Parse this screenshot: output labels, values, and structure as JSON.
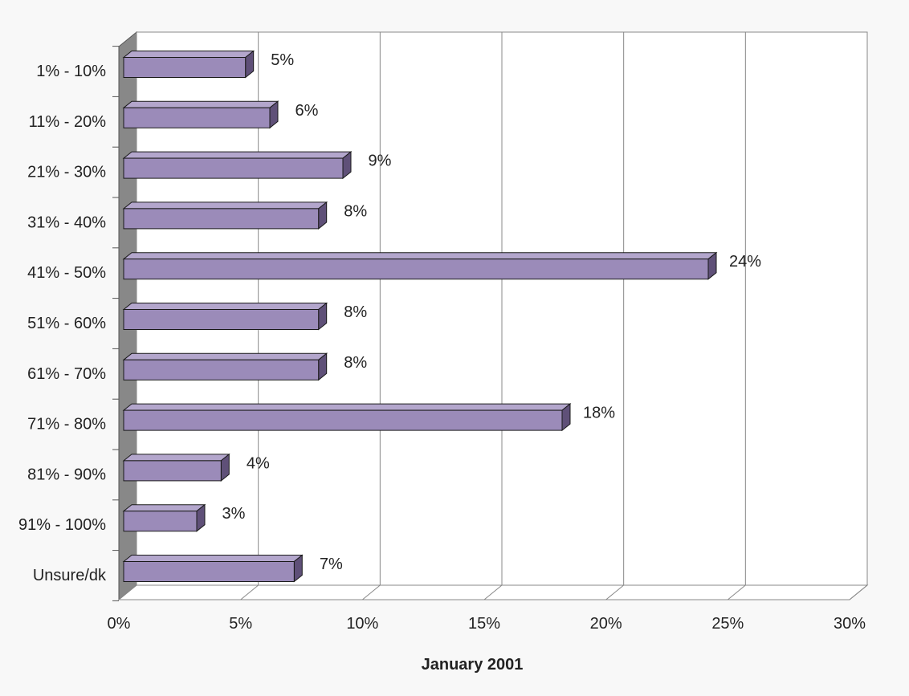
{
  "chart_data": {
    "type": "bar",
    "orientation": "horizontal",
    "style": "3d",
    "categories": [
      "1% - 10%",
      "11% - 20%",
      "21% - 30%",
      "31% - 40%",
      "41% - 50%",
      "51% - 60%",
      "61% - 70%",
      "71% - 80%",
      "81% - 90%",
      "91% - 100%",
      "Unsure/dk"
    ],
    "values": [
      5,
      6,
      9,
      8,
      24,
      8,
      8,
      18,
      4,
      3,
      7
    ],
    "data_labels": [
      "5%",
      "6%",
      "9%",
      "8%",
      "24%",
      "8%",
      "8%",
      "18%",
      "4%",
      "3%",
      "7%"
    ],
    "xlim": [
      0,
      30
    ],
    "x_ticks": [
      "0%",
      "5%",
      "10%",
      "15%",
      "20%",
      "25%",
      "30%"
    ],
    "xlabel": "January 2001",
    "ylabel": "",
    "title": "",
    "grid": true,
    "legend": false,
    "colors": {
      "bar_front": "#9b8bb9",
      "bar_top": "#b3a6cc",
      "bar_side": "#5f5078",
      "bar_edge": "#1a1a1a",
      "wall": "#ffffff",
      "side_wall": "#888888",
      "grid": "#888888",
      "background": "#f8f8f8"
    }
  }
}
